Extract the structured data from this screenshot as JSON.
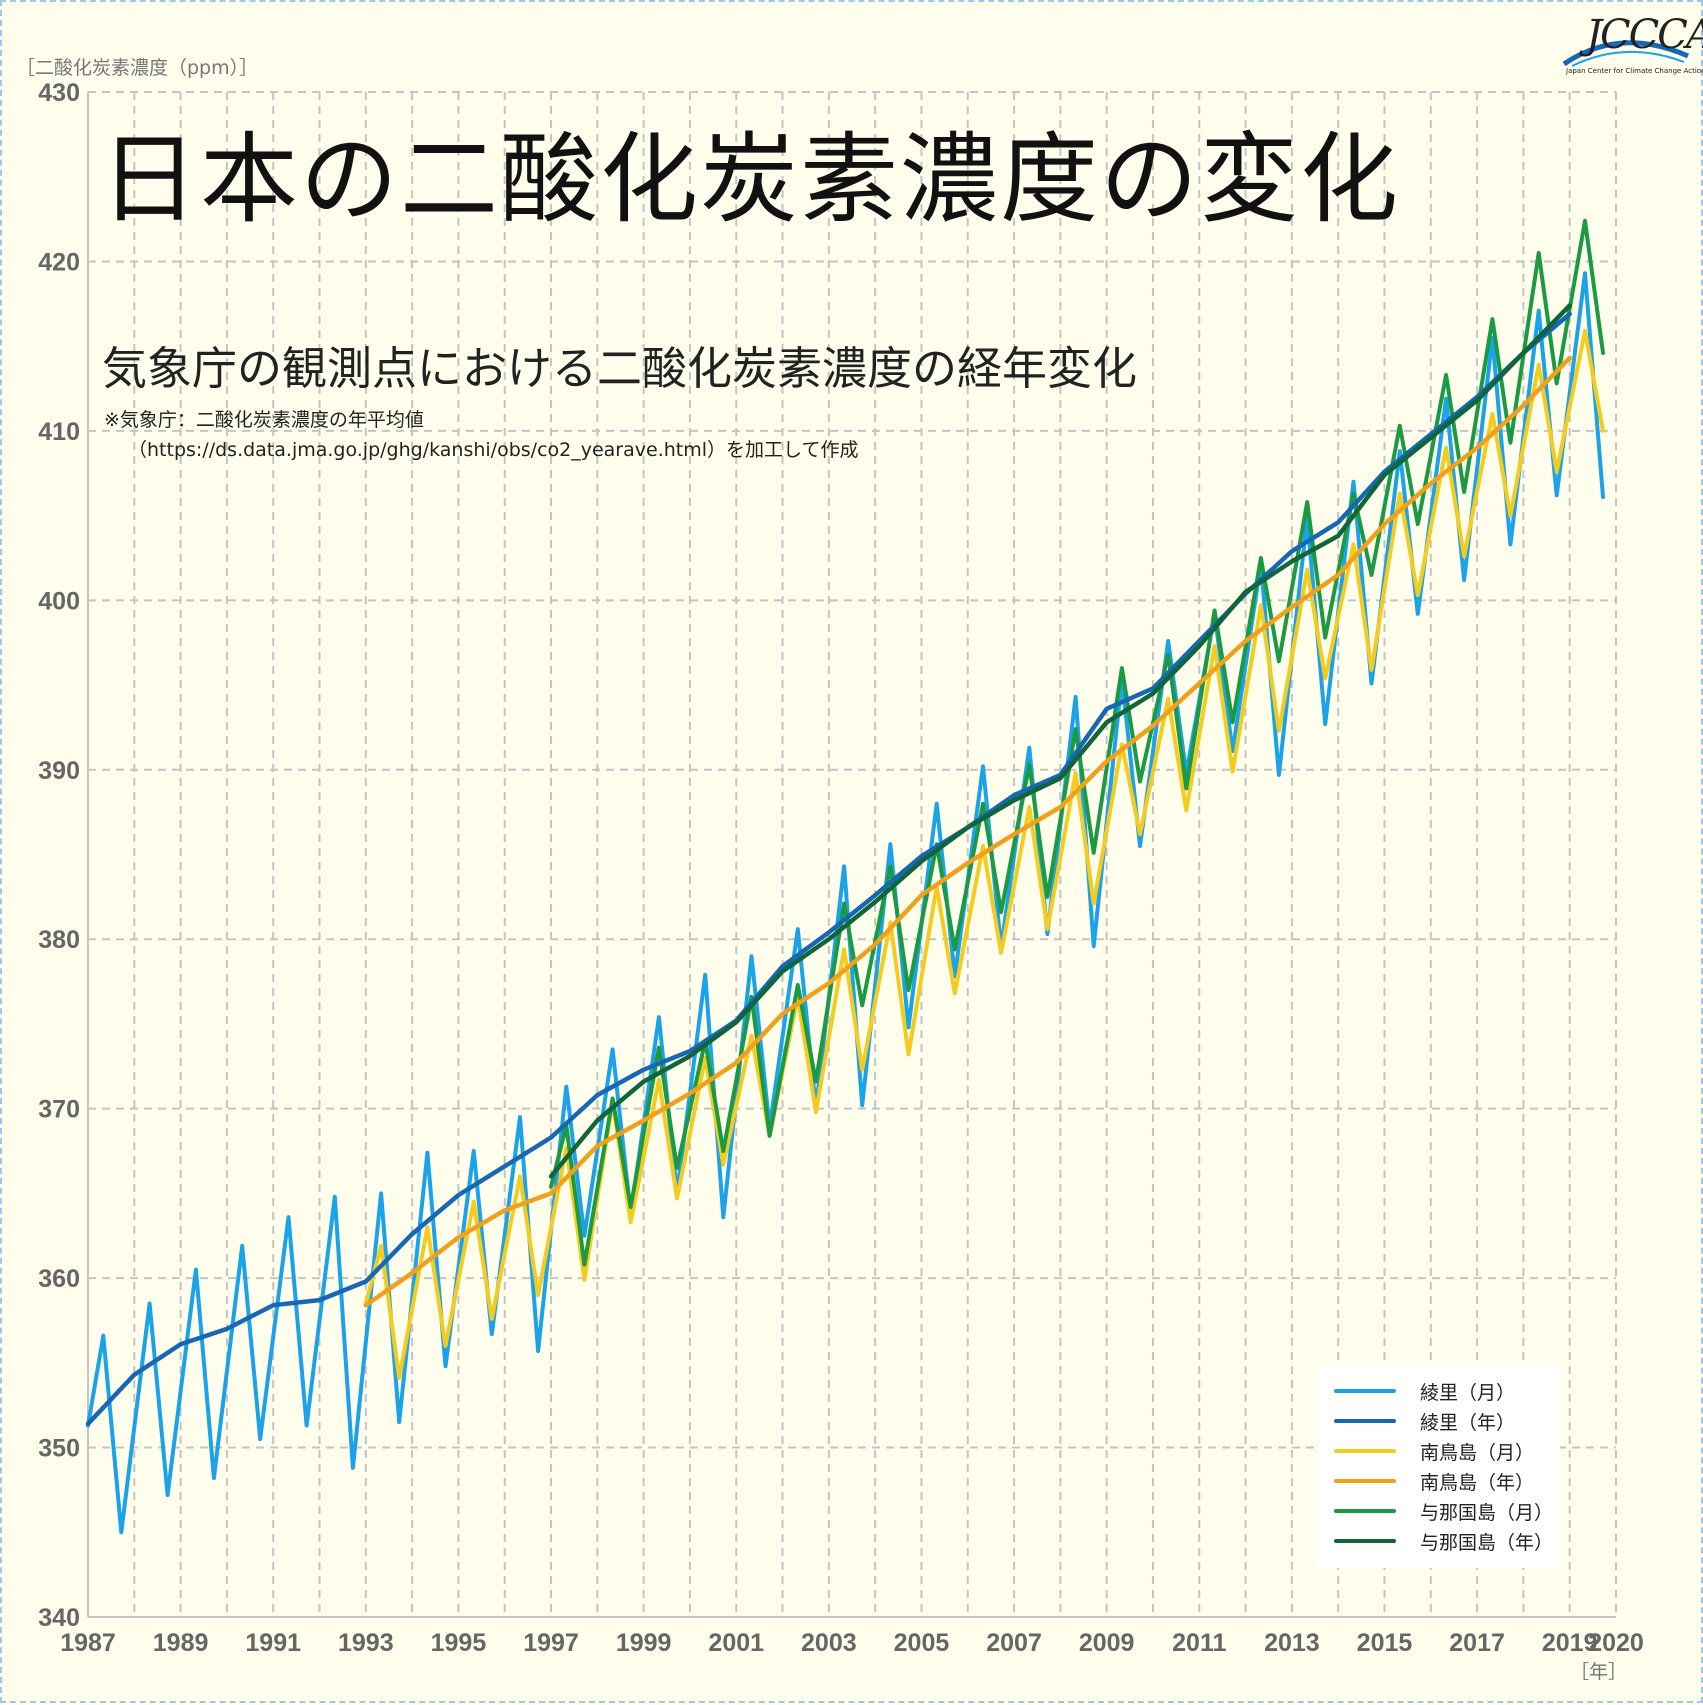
{
  "title": "日本の二酸化炭素濃度の変化",
  "subtitle": "気象庁の観測点における二酸化炭素濃度の経年変化",
  "source_note": [
    "※気象庁：二酸化炭素濃度の年平均値",
    "（https://ds.data.jma.go.jp/ghg/kanshi/obs/co2_yearave.html）を加工して作成"
  ],
  "logo": {
    "text": "JCCCA",
    "subtext": "Japan Center for Climate Change Actions"
  },
  "chart_data": {
    "type": "line",
    "ylabel": "［二酸化炭素濃度（ppm）］",
    "xlabel": "［年］",
    "xlim": [
      1987,
      2020
    ],
    "ylim": [
      340,
      430
    ],
    "grid": true,
    "legend_position": "bottom-right",
    "x_ticks": [
      1987,
      1989,
      1991,
      1993,
      1995,
      1997,
      1999,
      2001,
      2003,
      2005,
      2007,
      2009,
      2011,
      2013,
      2015,
      2017,
      2019,
      2020
    ],
    "y_ticks": [
      340,
      350,
      360,
      370,
      380,
      390,
      400,
      410,
      420,
      430
    ],
    "series": [
      {
        "name": "綾里（月）",
        "color": "#1aa3e8",
        "kind": "monthly",
        "start": 1987.0,
        "end": 2020.0,
        "peaks": [
          356.6,
          358.5,
          360.5,
          361.9,
          363.6,
          364.8,
          365.0,
          367.4,
          367.5,
          369.5,
          371.3,
          373.5,
          375.4,
          377.9,
          379.0,
          380.6,
          384.3,
          385.6,
          388.0,
          390.2,
          391.3,
          394.3,
          395.4,
          397.6,
          399.2,
          402.2,
          404.9,
          407.0,
          408.8,
          411.9,
          415.5,
          417.1,
          419.3,
          421.4,
          424.2,
          424.0
        ],
        "troughs": [
          345.0,
          347.2,
          348.2,
          350.5,
          351.3,
          348.8,
          351.5,
          354.8,
          356.7,
          355.7,
          362.5,
          363.8,
          365.0,
          363.6,
          368.9,
          370.0,
          370.2,
          374.8,
          377.8,
          379.5,
          380.3,
          379.6,
          385.5,
          389.8,
          391.1,
          389.7,
          392.7,
          395.1,
          399.2,
          401.2,
          403.3,
          406.2,
          406.1,
          410.5
        ]
      },
      {
        "name": "綾里（年）",
        "color": "#1667b5",
        "kind": "annual",
        "x": [
          1987,
          1988,
          1989,
          1990,
          1991,
          1992,
          1993,
          1994,
          1995,
          1996,
          1997,
          1998,
          1999,
          2000,
          2001,
          2002,
          2003,
          2004,
          2005,
          2006,
          2007,
          2008,
          2009,
          2010,
          2011,
          2012,
          2013,
          2014,
          2015,
          2016,
          2017,
          2018,
          2019
        ],
        "y": [
          351.4,
          354.3,
          356.1,
          357.0,
          358.4,
          358.7,
          359.8,
          362.6,
          364.9,
          366.6,
          368.3,
          370.8,
          372.3,
          373.4,
          375.2,
          378.4,
          380.4,
          382.6,
          384.9,
          386.6,
          388.5,
          389.7,
          393.6,
          394.8,
          397.6,
          400.4,
          402.9,
          404.6,
          407.6,
          409.8,
          412.0,
          414.6,
          416.9
        ]
      },
      {
        "name": "南鳥島（月）",
        "color": "#f4cc1f",
        "kind": "monthly",
        "start": 1993.0,
        "end": 2020.0,
        "peaks": [
          361.9,
          363.0,
          364.5,
          366.0,
          367.7,
          370.4,
          371.7,
          373.0,
          374.3,
          376.6,
          379.4,
          381.0,
          383.1,
          385.5,
          387.8,
          389.8,
          391.5,
          394.2,
          397.3,
          399.7,
          401.8,
          403.3,
          406.3,
          409.0,
          411.0,
          413.9,
          415.9,
          418.3,
          419.8
        ],
        "troughs": [
          354.1,
          356.0,
          357.6,
          359.0,
          359.9,
          363.3,
          364.7,
          366.7,
          368.4,
          369.8,
          372.3,
          373.2,
          376.8,
          379.2,
          380.6,
          382.1,
          386.2,
          387.6,
          389.9,
          392.3,
          395.4,
          395.9,
          400.3,
          402.6,
          405.0,
          407.6,
          410.0,
          412.3
        ]
      },
      {
        "name": "南鳥島（年）",
        "color": "#f0a01a",
        "kind": "annual",
        "x": [
          1993,
          1994,
          1995,
          1996,
          1997,
          1998,
          1999,
          2000,
          2001,
          2002,
          2003,
          2004,
          2005,
          2006,
          2007,
          2008,
          2009,
          2010,
          2011,
          2012,
          2013,
          2014,
          2015,
          2016,
          2017,
          2018,
          2019
        ],
        "y": [
          358.4,
          360.3,
          362.4,
          364.0,
          365.0,
          367.8,
          369.3,
          370.9,
          372.7,
          375.6,
          377.4,
          379.7,
          382.6,
          384.5,
          386.2,
          387.8,
          390.5,
          392.6,
          395.1,
          397.6,
          399.6,
          401.5,
          404.5,
          406.9,
          409.0,
          411.5,
          414.3
        ]
      },
      {
        "name": "与那国島（月）",
        "color": "#1c9a43",
        "kind": "monthly",
        "start": 1997.0,
        "end": 2020.0,
        "peaks": [
          369.0,
          370.6,
          373.6,
          374.0,
          376.6,
          377.3,
          382.1,
          384.3,
          385.6,
          388.0,
          390.3,
          392.4,
          396.0,
          396.8,
          399.4,
          402.5,
          405.8,
          406.3,
          410.3,
          413.3,
          416.6,
          420.5,
          422.4,
          421.4
        ],
        "troughs": [
          360.8,
          364.2,
          366.5,
          367.5,
          368.4,
          371.6,
          376.1,
          377.0,
          379.4,
          381.6,
          382.5,
          385.1,
          389.3,
          388.9,
          392.8,
          396.4,
          397.8,
          401.5,
          404.5,
          406.4,
          409.3,
          412.8,
          414.6
        ]
      },
      {
        "name": "与那国島（年）",
        "color": "#10653a",
        "kind": "annual",
        "x": [
          1997,
          1998,
          1999,
          2000,
          2001,
          2002,
          2003,
          2004,
          2005,
          2006,
          2007,
          2008,
          2009,
          2010,
          2011,
          2012,
          2013,
          2014,
          2015,
          2016,
          2017,
          2018,
          2019
        ],
        "y": [
          366.0,
          369.3,
          371.6,
          373.1,
          375.1,
          378.1,
          380.0,
          382.2,
          384.6,
          386.6,
          388.2,
          389.5,
          392.8,
          394.5,
          397.3,
          400.5,
          402.3,
          403.8,
          407.4,
          409.6,
          411.8,
          414.6,
          417.4
        ]
      }
    ]
  },
  "legend_items": [
    "綾里（月）",
    "綾里（年）",
    "南鳥島（月）",
    "南鳥島（年）",
    "与那国島（月）",
    "与那国島（年）"
  ]
}
